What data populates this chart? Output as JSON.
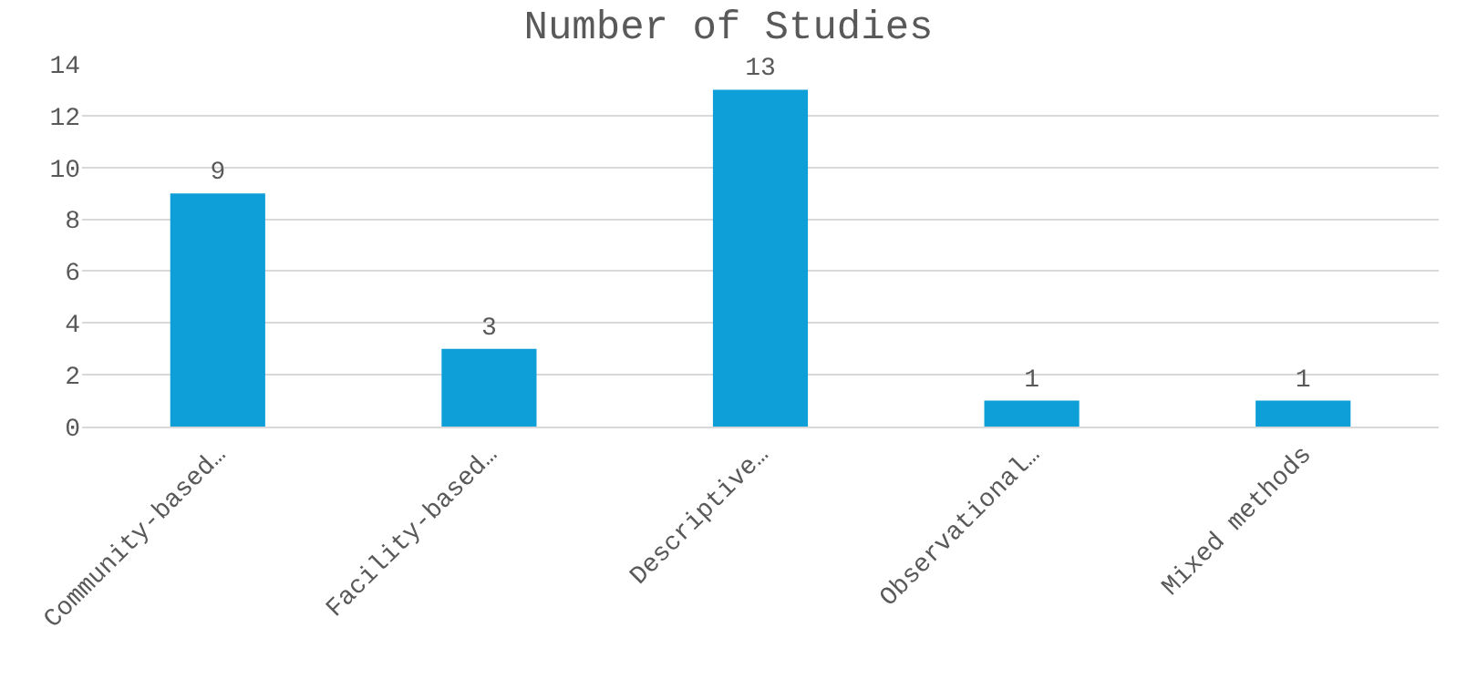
{
  "chart_data": {
    "type": "bar",
    "title": "Number of Studies",
    "categories": [
      "Community-based…",
      "Facility-based…",
      "Descriptive…",
      "Observational…",
      "Mixed methods"
    ],
    "values": [
      9,
      3,
      13,
      1,
      1
    ],
    "color": "#0e9fd8",
    "ylim": [
      0,
      14
    ],
    "yticks": [
      0,
      2,
      4,
      6,
      8,
      10,
      12,
      14
    ],
    "grid": "y",
    "data_labels": true,
    "legend": false
  }
}
